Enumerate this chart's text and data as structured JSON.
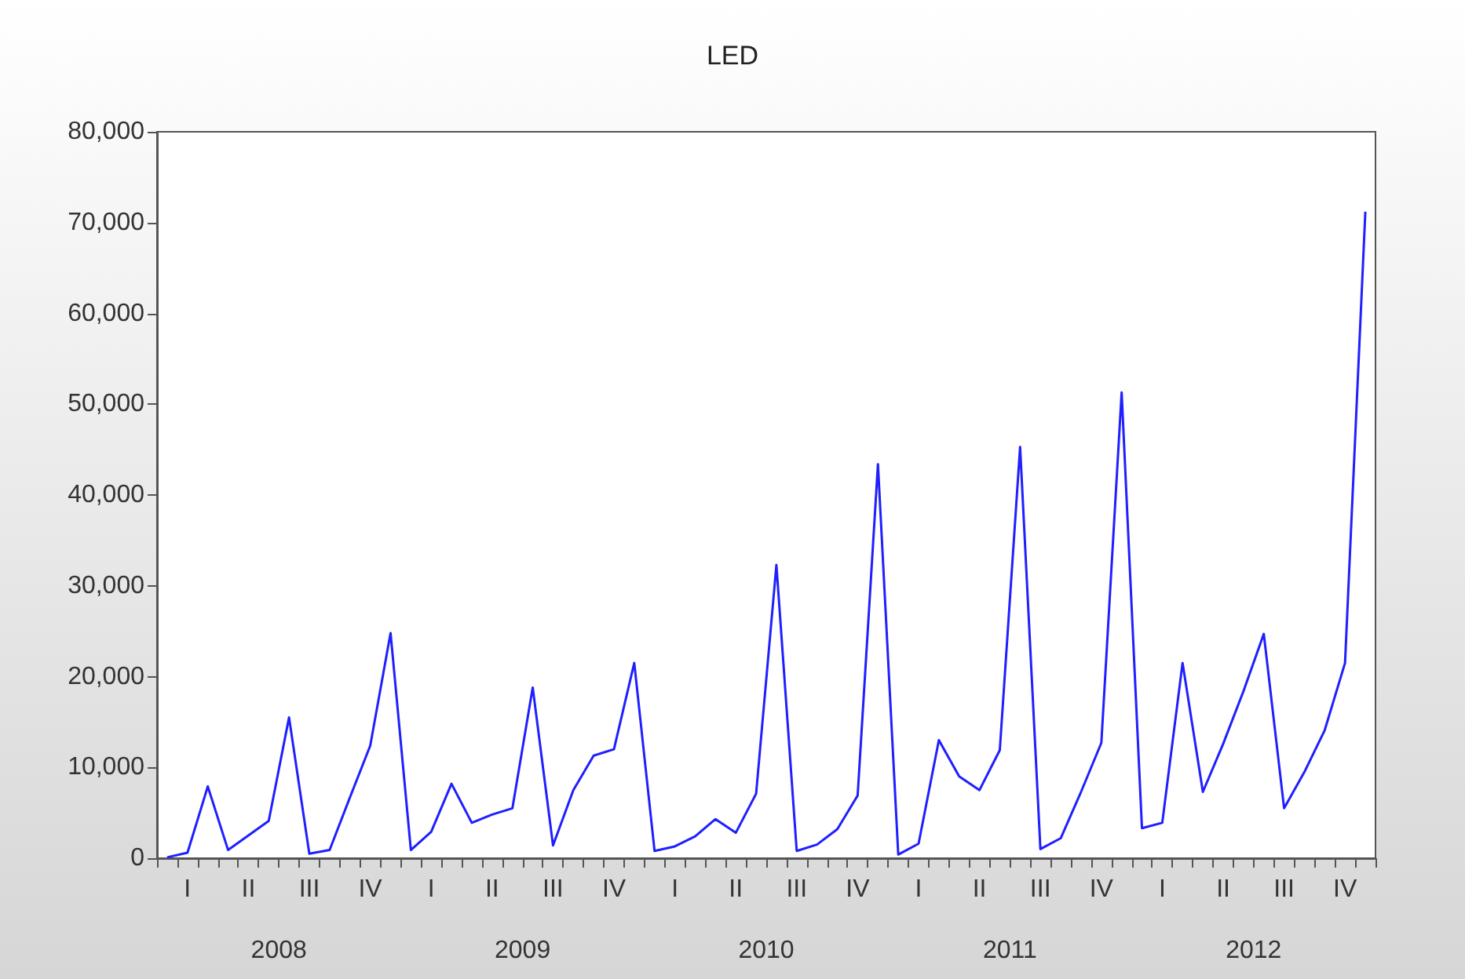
{
  "chart_data": {
    "type": "line",
    "title": "LED",
    "categories": [
      null,
      "I",
      null,
      null,
      "II",
      null,
      null,
      "III",
      null,
      null,
      "IV",
      null,
      null,
      "I",
      null,
      null,
      "II",
      null,
      null,
      "III",
      null,
      null,
      "IV",
      null,
      null,
      "I",
      null,
      null,
      "II",
      null,
      null,
      "III",
      null,
      null,
      "IV",
      null,
      null,
      "I",
      null,
      null,
      "II",
      null,
      null,
      "III",
      null,
      null,
      "IV",
      null,
      null,
      "I",
      null,
      null,
      "II",
      null,
      null,
      "III",
      null,
      null,
      "IV",
      null
    ],
    "series": [
      {
        "color": "#1f1fff",
        "values": [
          100,
          600,
          7900,
          900,
          2500,
          4100,
          15500,
          500,
          900,
          6700,
          12400,
          24800,
          900,
          2900,
          8200,
          3900,
          4800,
          5500,
          18800,
          1400,
          7500,
          11300,
          12000,
          21500,
          800,
          1300,
          2400,
          4300,
          2800,
          7100,
          32300,
          800,
          1500,
          3200,
          6900,
          43400,
          400,
          1600,
          13000,
          9000,
          7500,
          11900,
          45300,
          1000,
          2200,
          7300,
          12700,
          51300,
          3300,
          3900,
          21500,
          7300,
          12600,
          18400,
          24700,
          5500,
          9500,
          14100,
          21500,
          71200
        ]
      }
    ],
    "ylim": [
      0,
      80000
    ],
    "yticks": [
      0,
      {
        "value": 10000,
        "label": "10,000"
      },
      {
        "value": 20000,
        "label": "20,000"
      },
      {
        "value": 30000,
        "label": "30,000"
      },
      {
        "value": 40000,
        "label": "40,000"
      },
      {
        "value": 50000,
        "label": "50,000"
      },
      {
        "value": 60000,
        "label": "60,000"
      },
      {
        "value": 70000,
        "label": "70,000"
      },
      {
        "value": 80000,
        "label": "80,000"
      }
    ],
    "annotations": [
      "2008",
      "2009",
      "2010",
      "2011",
      "2012"
    ],
    "grid": false,
    "marker": "none",
    "line_style": "solid"
  }
}
